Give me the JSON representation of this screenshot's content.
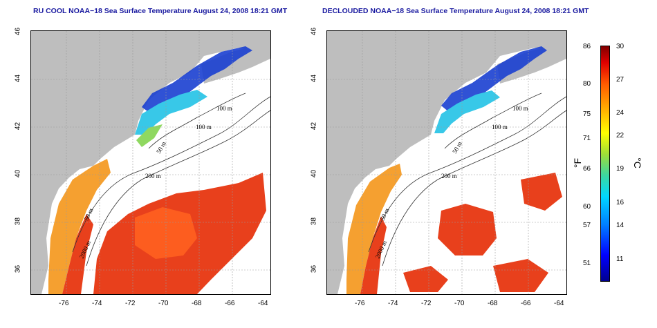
{
  "titles": {
    "left": "RU COOL NOAA−18 Sea Surface Temperature August 24, 2008 18:21 GMT",
    "right": "DECLOUDED NOAA−18 Sea Surface Temperature August 24, 2008 18:21 GMT"
  },
  "axes": {
    "x_ticks": [
      "-76",
      "-74",
      "-72",
      "-70",
      "-68",
      "-66",
      "-64"
    ],
    "y_ticks": [
      "36",
      "38",
      "40",
      "42",
      "44",
      "46"
    ]
  },
  "contours": {
    "m100_a": "100 m",
    "m100_b": "100 m",
    "m50_a": "50 m",
    "m200": "200 m",
    "m50_b": "50 m",
    "m2000": "2000 m"
  },
  "colorbar": {
    "fahrenheit_unit": "°F",
    "celsius_unit": "°C",
    "fahrenheit_ticks": [
      "86",
      "80",
      "75",
      "71",
      "66",
      "60",
      "57",
      "51"
    ],
    "celsius_ticks": [
      "30",
      "27",
      "24",
      "22",
      "19",
      "16",
      "14",
      "11"
    ]
  },
  "colors": {
    "land": "#bebebe",
    "cold": "#1a3fd0",
    "cool": "#38c8e8",
    "mild": "#8fd860",
    "warm": "#f5a030",
    "hot": "#e8401c"
  }
}
